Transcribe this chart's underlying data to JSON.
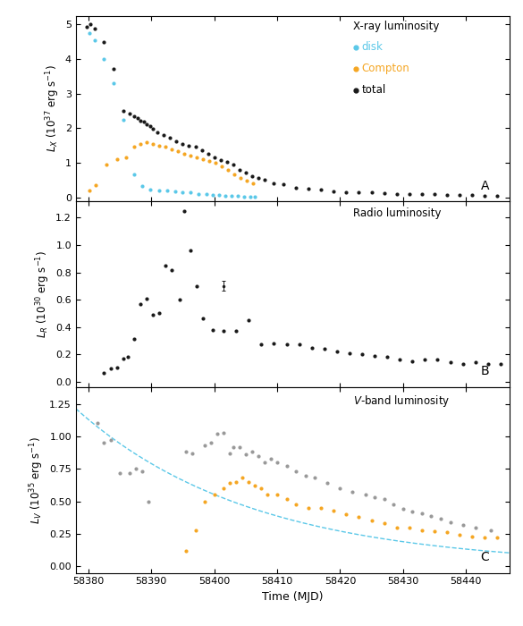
{
  "panel_A_label": "A",
  "panel_B_label": "B",
  "panel_C_label": "C",
  "title_A": "X-ray luminosity",
  "title_B": "Radio luminosity",
  "title_C": "$V$-band luminosity",
  "xlabel": "Time (MJD)",
  "ylabel_A": "$L_X$ ($10^{37}$ erg s$^{-1}$)",
  "ylabel_B": "$L_R$ ($10^{30}$ erg s$^{-1}$)",
  "ylabel_C": "$L_V$ ($10^{35}$ erg s$^{-1}$)",
  "xlim": [
    58378,
    58447
  ],
  "xticks": [
    58380,
    58390,
    58400,
    58410,
    58420,
    58430,
    58440
  ],
  "ylim_A": [
    -0.12,
    5.25
  ],
  "ylim_B": [
    -0.04,
    1.32
  ],
  "ylim_C": [
    -0.05,
    1.38
  ],
  "yticks_A": [
    0.0,
    1.0,
    2.0,
    3.0,
    4.0,
    5.0
  ],
  "yticks_B": [
    0.0,
    0.2,
    0.4,
    0.6,
    0.8,
    1.0,
    1.2
  ],
  "yticks_C": [
    0.0,
    0.25,
    0.5,
    0.75,
    1.0,
    1.25
  ],
  "disk_color": "#5bc8e8",
  "compton_color": "#f5a623",
  "total_color": "#1a1a1a",
  "radio_color": "#1a1a1a",
  "gray_color": "#999999",
  "orange_color": "#f5a623",
  "disk_x": [
    58380.1,
    58381.0,
    58382.5,
    58384.0,
    58385.5,
    58387.2,
    58388.5,
    58389.8,
    58391.2,
    58392.5,
    58393.8,
    58395.0,
    58396.2,
    58397.5,
    58398.8,
    58399.8,
    58400.8,
    58401.8,
    58402.8,
    58403.8,
    58404.8,
    58405.8,
    58406.5
  ],
  "disk_y": [
    4.75,
    4.55,
    4.0,
    3.3,
    2.25,
    0.65,
    0.32,
    0.22,
    0.2,
    0.19,
    0.17,
    0.15,
    0.13,
    0.1,
    0.08,
    0.07,
    0.06,
    0.05,
    0.04,
    0.03,
    0.02,
    0.01,
    0.01
  ],
  "compton_x": [
    58380.2,
    58381.2,
    58382.8,
    58384.5,
    58386.0,
    58387.2,
    58388.2,
    58389.2,
    58390.2,
    58391.2,
    58392.2,
    58393.2,
    58394.2,
    58395.2,
    58396.2,
    58397.2,
    58398.2,
    58399.2,
    58400.2,
    58401.2,
    58402.2,
    58403.2,
    58404.2,
    58405.2,
    58406.2
  ],
  "compton_y": [
    0.2,
    0.35,
    0.95,
    1.1,
    1.15,
    1.45,
    1.55,
    1.58,
    1.55,
    1.5,
    1.45,
    1.38,
    1.32,
    1.25,
    1.2,
    1.15,
    1.1,
    1.05,
    1.0,
    0.9,
    0.8,
    0.65,
    0.55,
    0.48,
    0.4
  ],
  "total_x": [
    58379.8,
    58380.3,
    58381.0,
    58382.5,
    58384.0,
    58385.5,
    58386.5,
    58387.3,
    58387.8,
    58388.3,
    58388.8,
    58389.3,
    58389.8,
    58390.3,
    58391.0,
    58392.0,
    58393.0,
    58394.0,
    58395.0,
    58396.0,
    58397.0,
    58398.0,
    58399.0,
    58400.0,
    58401.0,
    58402.0,
    58403.0,
    58404.0,
    58405.0,
    58406.0,
    58407.0,
    58408.0,
    58409.5,
    58411.0,
    58413.0,
    58415.0,
    58417.0,
    58419.0,
    58421.0,
    58423.0,
    58425.0,
    58427.0,
    58429.0,
    58431.0,
    58433.0,
    58435.0,
    58437.0,
    58439.0,
    58441.0,
    58443.0,
    58445.0
  ],
  "total_y": [
    4.93,
    5.0,
    4.88,
    4.48,
    3.72,
    2.5,
    2.42,
    2.35,
    2.28,
    2.22,
    2.18,
    2.12,
    2.05,
    1.98,
    1.88,
    1.8,
    1.72,
    1.62,
    1.55,
    1.5,
    1.45,
    1.35,
    1.26,
    1.15,
    1.08,
    1.02,
    0.95,
    0.8,
    0.7,
    0.62,
    0.55,
    0.5,
    0.4,
    0.38,
    0.28,
    0.25,
    0.22,
    0.18,
    0.15,
    0.15,
    0.13,
    0.12,
    0.1,
    0.1,
    0.09,
    0.08,
    0.07,
    0.07,
    0.06,
    0.05,
    0.04
  ],
  "radio_x": [
    58382.5,
    58383.5,
    58384.5,
    58385.5,
    58386.3,
    58387.2,
    58388.2,
    58389.2,
    58390.2,
    58391.2,
    58392.2,
    58393.2,
    58394.5,
    58395.2,
    58396.2,
    58397.2,
    58398.2,
    58399.8,
    58401.5,
    58403.5,
    58405.5,
    58407.5,
    58409.5,
    58411.5,
    58413.5,
    58415.5,
    58417.5,
    58419.5,
    58421.5,
    58423.5,
    58425.5,
    58427.5,
    58429.5,
    58431.5,
    58433.5,
    58435.5,
    58437.5,
    58439.5,
    58441.5,
    58443.5,
    58445.5
  ],
  "radio_y": [
    0.065,
    0.095,
    0.1,
    0.17,
    0.18,
    0.31,
    0.57,
    0.61,
    0.49,
    0.5,
    0.85,
    0.82,
    0.6,
    1.25,
    0.96,
    0.7,
    0.46,
    0.38,
    0.37,
    0.37,
    0.45,
    0.27,
    0.28,
    0.27,
    0.27,
    0.25,
    0.24,
    0.22,
    0.21,
    0.2,
    0.19,
    0.18,
    0.16,
    0.15,
    0.16,
    0.16,
    0.14,
    0.13,
    0.14,
    0.13,
    0.13
  ],
  "radio_errbar_x": [
    58401.5
  ],
  "radio_errbar_y": [
    0.7
  ],
  "radio_errbar_yerr": [
    0.035
  ],
  "vband_gray_x": [
    58381.5,
    58382.5,
    58383.5,
    58385.0,
    58386.5,
    58387.5,
    58388.5,
    58389.5,
    58395.5,
    58396.5,
    58398.5,
    58399.5,
    58400.5,
    58401.5,
    58402.5,
    58403.0,
    58404.0,
    58405.0,
    58406.0,
    58407.0,
    58408.0,
    58409.0,
    58410.0,
    58411.5,
    58413.0,
    58414.5,
    58416.0,
    58418.0,
    58420.0,
    58422.0,
    58424.0,
    58425.5,
    58427.0,
    58428.5,
    58430.0,
    58431.5,
    58433.0,
    58434.5,
    58436.0,
    58437.5,
    58439.5,
    58441.5,
    58444.0
  ],
  "vband_gray_y": [
    1.1,
    0.95,
    0.97,
    0.72,
    0.72,
    0.75,
    0.73,
    0.5,
    0.88,
    0.87,
    0.93,
    0.95,
    1.02,
    1.03,
    0.87,
    0.92,
    0.92,
    0.86,
    0.88,
    0.85,
    0.8,
    0.83,
    0.8,
    0.77,
    0.73,
    0.7,
    0.68,
    0.64,
    0.6,
    0.57,
    0.55,
    0.53,
    0.52,
    0.48,
    0.44,
    0.42,
    0.41,
    0.39,
    0.37,
    0.34,
    0.32,
    0.3,
    0.28
  ],
  "vband_orange_x": [
    58395.5,
    58397.0,
    58398.5,
    58400.0,
    58401.5,
    58402.5,
    58403.5,
    58404.5,
    58405.5,
    58406.5,
    58407.5,
    58408.5,
    58410.0,
    58411.5,
    58413.0,
    58415.0,
    58417.0,
    58419.0,
    58421.0,
    58423.0,
    58425.0,
    58427.0,
    58429.0,
    58431.0,
    58433.0,
    58435.0,
    58437.0,
    58439.0,
    58441.0,
    58443.0,
    58445.0
  ],
  "vband_orange_y": [
    0.12,
    0.28,
    0.5,
    0.55,
    0.6,
    0.64,
    0.65,
    0.68,
    0.65,
    0.62,
    0.6,
    0.55,
    0.55,
    0.52,
    0.48,
    0.45,
    0.45,
    0.43,
    0.4,
    0.38,
    0.35,
    0.33,
    0.3,
    0.3,
    0.28,
    0.27,
    0.26,
    0.24,
    0.23,
    0.22,
    0.22
  ],
  "vband_curve_amp": 1.13,
  "vband_curve_tau": 28.0,
  "vband_curve_t0": 58380.0
}
